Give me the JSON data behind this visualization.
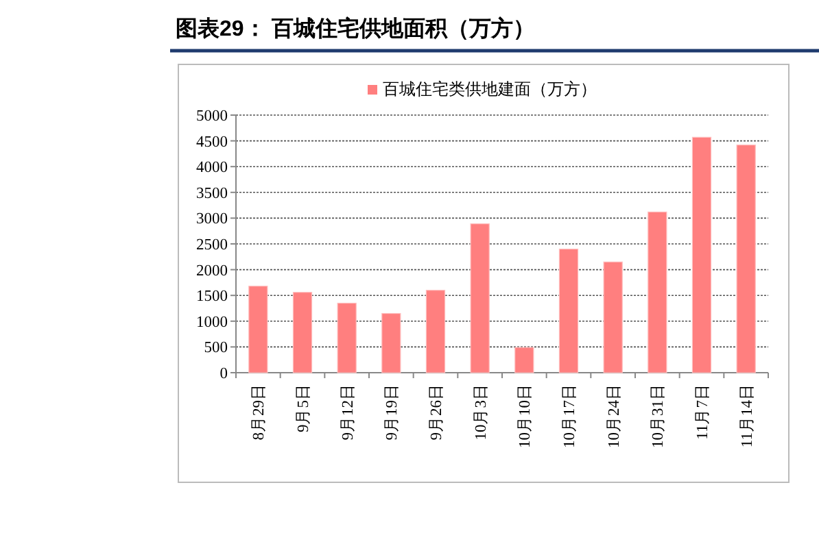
{
  "chart_data": {
    "type": "bar",
    "title": "图表29：  百城住宅供地面积（万方）",
    "categories": [
      "8月29日",
      "9月5日",
      "9月12日",
      "9月19日",
      "9月26日",
      "10月3日",
      "10月10日",
      "10月17日",
      "10月24日",
      "10月31日",
      "11月7日",
      "11月14日"
    ],
    "series": [
      {
        "name": "百城住宅类供地建面（万方）",
        "color": "#ff7f7f",
        "values": [
          1680,
          1560,
          1350,
          1150,
          1600,
          2890,
          490,
          2400,
          2150,
          3120,
          4570,
          4420
        ]
      }
    ],
    "ylim": [
      0,
      5000
    ],
    "yticks": [
      0,
      500,
      1000,
      1500,
      2000,
      2500,
      3000,
      3500,
      4000,
      4500,
      5000
    ],
    "grid": "y",
    "legend": "top"
  }
}
